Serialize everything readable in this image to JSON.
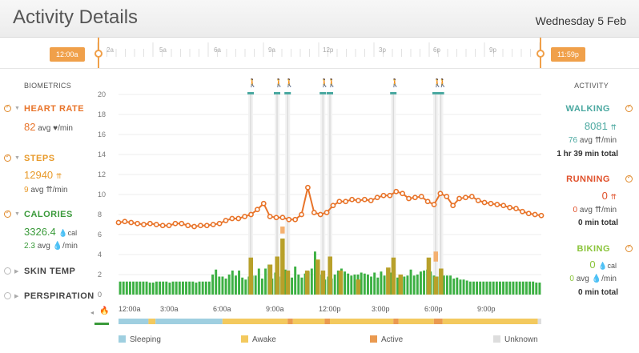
{
  "header": {
    "title": "Activity Details",
    "date": "Wednesday 5 Feb"
  },
  "timeline": {
    "start_label": "12:00a",
    "end_label": "11:59p",
    "ticks": [
      "2a",
      "5a",
      "6a",
      "9a",
      "12p",
      "3p",
      "6p",
      "9p"
    ]
  },
  "biometrics": {
    "heading": "BIOMETRICS",
    "heart_rate": {
      "name": "HEART RATE",
      "value": "82",
      "sub": "avg ♥/min"
    },
    "steps": {
      "name": "STEPS",
      "value": "12940",
      "value_unit": "⇈",
      "sub_value": "9",
      "sub": "avg ⇈/min"
    },
    "calories": {
      "name": "CALORIES",
      "value": "3326.4",
      "value_unit": "💧cal",
      "sub_value": "2.3",
      "sub": "avg 💧/min"
    },
    "skin_temp": {
      "name": "SKIN TEMP"
    },
    "perspiration": {
      "name": "PERSPIRATION"
    }
  },
  "activity": {
    "heading": "ACTIVITY",
    "walking": {
      "name": "WALKING",
      "value": "8081",
      "value_unit": "⇈",
      "sub_value": "76",
      "sub": "avg ⇈/min",
      "total": "1 hr 39 min total"
    },
    "running": {
      "name": "RUNNING",
      "value": "0",
      "value_unit": "⇈",
      "sub_value": "0",
      "sub": "avg ⇈/min",
      "total": "0 min total"
    },
    "biking": {
      "name": "BIKING",
      "value": "0",
      "value_unit": "💧cal",
      "sub_value": "0",
      "sub": "avg 💧/min",
      "total": "0 min total"
    }
  },
  "legend": {
    "sleeping": "Sleeping",
    "awake": "Awake",
    "active": "Active",
    "unknown": "Unknown"
  },
  "colors": {
    "heart": "#e8742a",
    "steps": "#e89a2a",
    "calories": "#3a9a3a",
    "walking": "#4aa8a0",
    "running": "#e0502a",
    "biking": "#8ac43a",
    "bar_green": "#3cb043",
    "bar_olive": "#b8a02a",
    "bar_peach": "#f4b070",
    "sleeping": "#9fcfe0",
    "awake": "#f3c95e",
    "active": "#ea9a50",
    "unknown": "#dddddd"
  },
  "chart_data": {
    "type": "bar",
    "title": "",
    "y_ticks": [
      0,
      2,
      4,
      6,
      8,
      10,
      12,
      14,
      16,
      18,
      20
    ],
    "ylim": [
      0,
      20
    ],
    "x_tick_labels": [
      "12:00a",
      "3:00a",
      "6:00a",
      "9:00a",
      "12:00p",
      "3:00p",
      "6:00p",
      "9:00p"
    ],
    "x_hours": [
      0,
      3,
      6,
      9,
      12,
      15,
      18,
      21
    ],
    "xlim": [
      0,
      24
    ],
    "calorie_bars": [
      1.3,
      1.3,
      1.3,
      1.3,
      1.3,
      1.3,
      1.3,
      1.3,
      1.3,
      1.2,
      1.2,
      1.3,
      1.3,
      1.3,
      1.3,
      1.2,
      1.3,
      1.3,
      1.3,
      1.3,
      1.3,
      1.3,
      1.3,
      1.2,
      1.3,
      1.3,
      1.3,
      1.3,
      2.0,
      2.5,
      1.8,
      1.8,
      1.6,
      2.0,
      2.4,
      1.9,
      2.4,
      1.7,
      1.5,
      1.8,
      1.9,
      1.9,
      2.6,
      1.6,
      2.6,
      3.0,
      1.6,
      2.2,
      1.8,
      2.0,
      2.5,
      2.1,
      1.7,
      2.8,
      2.0,
      1.7,
      2.1,
      2.3,
      2.6,
      4.3,
      2.6,
      2.0,
      1.5,
      1.8,
      1.6,
      2.0,
      2.4,
      2.6,
      2.3,
      2.1,
      1.9,
      2.0,
      2.0,
      2.2,
      2.1,
      2.0,
      1.8,
      2.2,
      1.7,
      2.3,
      1.9,
      2.4,
      2.2,
      2.0,
      1.7,
      1.8,
      1.8,
      1.9,
      2.5,
      1.9,
      2.0,
      2.3,
      2.4,
      2.5,
      2.3,
      1.9,
      1.8,
      2.1,
      1.9,
      1.9,
      1.9,
      1.6,
      1.7,
      1.5,
      1.5,
      1.4,
      1.3,
      1.3,
      1.3,
      1.3,
      1.3,
      1.3,
      1.3,
      1.3,
      1.3,
      1.3,
      1.3,
      1.3,
      1.3,
      1.3,
      1.3,
      1.3,
      1.3,
      1.3,
      1.3,
      1.3,
      1.2,
      1.2
    ],
    "step_bars": [
      {
        "hour": 7.5,
        "value": 3.7
      },
      {
        "hour": 8.6,
        "value": 3.0
      },
      {
        "hour": 9.0,
        "value": 3.8
      },
      {
        "hour": 9.3,
        "value": 5.6
      },
      {
        "hour": 9.6,
        "value": 2.4
      },
      {
        "hour": 10.7,
        "value": 2.4
      },
      {
        "hour": 11.3,
        "value": 3.5
      },
      {
        "hour": 11.6,
        "value": 2.4
      },
      {
        "hour": 12.0,
        "value": 3.8
      },
      {
        "hour": 12.6,
        "value": 2.4
      },
      {
        "hour": 13.6,
        "value": 1.5
      },
      {
        "hour": 15.3,
        "value": 2.7
      },
      {
        "hour": 15.6,
        "value": 3.7
      },
      {
        "hour": 16.0,
        "value": 2.0
      },
      {
        "hour": 17.6,
        "value": 3.7
      },
      {
        "hour": 18.0,
        "value": 1.8
      },
      {
        "hour": 18.3,
        "value": 2.6
      }
    ],
    "peak_bars": [
      {
        "hour": 9.3,
        "value": 6.8,
        "base": 6.1
      },
      {
        "hour": 18.0,
        "value": 4.3,
        "base": 3.3
      }
    ],
    "heart_rate_line": [
      7.2,
      7.3,
      7.2,
      7.1,
      7.0,
      7.1,
      7.0,
      6.9,
      6.9,
      7.1,
      7.1,
      6.9,
      6.8,
      6.9,
      6.9,
      7.0,
      7.1,
      7.4,
      7.6,
      7.6,
      7.8,
      8.0,
      8.5,
      9.1,
      7.8,
      7.7,
      7.7,
      7.5,
      7.5,
      8.0,
      10.7,
      8.2,
      8.0,
      8.2,
      8.9,
      9.3,
      9.3,
      9.5,
      9.4,
      9.5,
      9.4,
      9.7,
      9.9,
      9.9,
      10.3,
      10.1,
      9.6,
      9.7,
      9.8,
      9.3,
      9.0,
      10.1,
      9.8,
      8.9,
      9.6,
      9.7,
      9.8,
      9.4,
      9.2,
      9.1,
      9.0,
      8.9,
      8.7,
      8.6,
      8.3,
      8.1,
      8.0,
      7.9
    ],
    "walking_periods": [
      7.5,
      9.0,
      9.6,
      11.6,
      12.0,
      15.6,
      18.0,
      18.3
    ],
    "activity_band": [
      {
        "state": "Sleeping",
        "from": 0,
        "to": 1.7
      },
      {
        "state": "Awake",
        "from": 1.7,
        "to": 2.1
      },
      {
        "state": "Sleeping",
        "from": 2.1,
        "to": 5.9
      },
      {
        "state": "Awake",
        "from": 5.9,
        "to": 9.6
      },
      {
        "state": "Active",
        "from": 9.6,
        "to": 9.9
      },
      {
        "state": "Awake",
        "from": 9.9,
        "to": 11.7
      },
      {
        "state": "Active",
        "from": 11.7,
        "to": 12.0
      },
      {
        "state": "Awake",
        "from": 12.0,
        "to": 15.6
      },
      {
        "state": "Active",
        "from": 15.6,
        "to": 15.9
      },
      {
        "state": "Awake",
        "from": 15.9,
        "to": 17.9
      },
      {
        "state": "Active",
        "from": 17.9,
        "to": 18.4
      },
      {
        "state": "Awake",
        "from": 18.4,
        "to": 23.8
      },
      {
        "state": "Unknown",
        "from": 23.8,
        "to": 24
      }
    ]
  }
}
